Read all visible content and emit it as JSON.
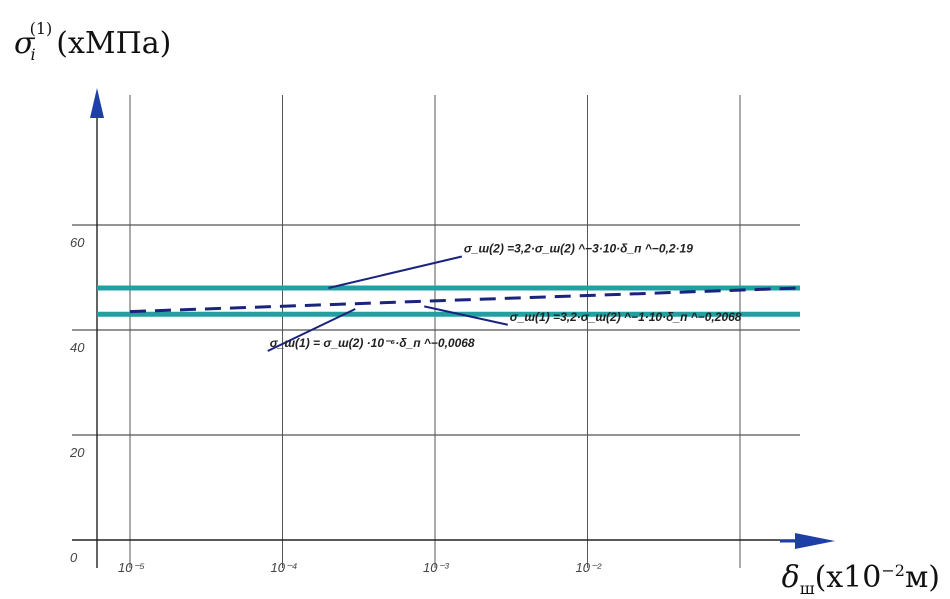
{
  "chart_data": {
    "type": "line",
    "xscale": "log",
    "xlim": [
      5e-06,
      0.05
    ],
    "ylim": [
      -5,
      100
    ],
    "x_ticks": [
      1e-05,
      0.0001,
      0.001,
      0.01
    ],
    "x_tick_labels": [
      "10⁻⁵",
      "10⁻⁴",
      "10⁻³",
      "10⁻²"
    ],
    "y_ticks": [
      0,
      20,
      40,
      60
    ],
    "y_tick_labels": [
      "0",
      "20",
      "40",
      "60"
    ],
    "grid": true,
    "ylabel_parts": [
      "σ",
      "i",
      "(1)",
      "(xМПа)"
    ],
    "xlabel_parts": [
      "δ",
      "ш",
      "(x10",
      "−2",
      "м)"
    ],
    "series": [
      {
        "style": "solid",
        "color": "#20a0a0",
        "x": [
          1e-05,
          0.05
        ],
        "y": [
          48,
          48
        ]
      },
      {
        "style": "solid",
        "color": "#20a0a0",
        "x": [
          1e-05,
          0.05
        ],
        "y": [
          43,
          43
        ]
      },
      {
        "style": "dashed",
        "color": "#1a237e",
        "x": [
          1e-05,
          0.05
        ],
        "y": [
          43.5,
          48
        ]
      }
    ],
    "annotations": [
      {
        "text": "σ_ш(2) =3,2·σ_ш(2) ^−3·10·δ_п ^−0,2·19",
        "x": 0.0002,
        "y": 48,
        "label_x": 0.0015,
        "label_y": 54
      },
      {
        "text": "σ_ш(1) = σ_ш(2) ·10⁻⁶·δ_п ^−0,0068",
        "x": 0.0003,
        "y": 44,
        "label_x": 8e-05,
        "label_y": 36
      },
      {
        "text": "σ_ш(1) =3,2·σ_ш(2) ^−1·10·δ_п ^−0,2068",
        "x": 0.00085,
        "y": 44.5,
        "label_x": 0.003,
        "label_y": 41
      }
    ]
  }
}
